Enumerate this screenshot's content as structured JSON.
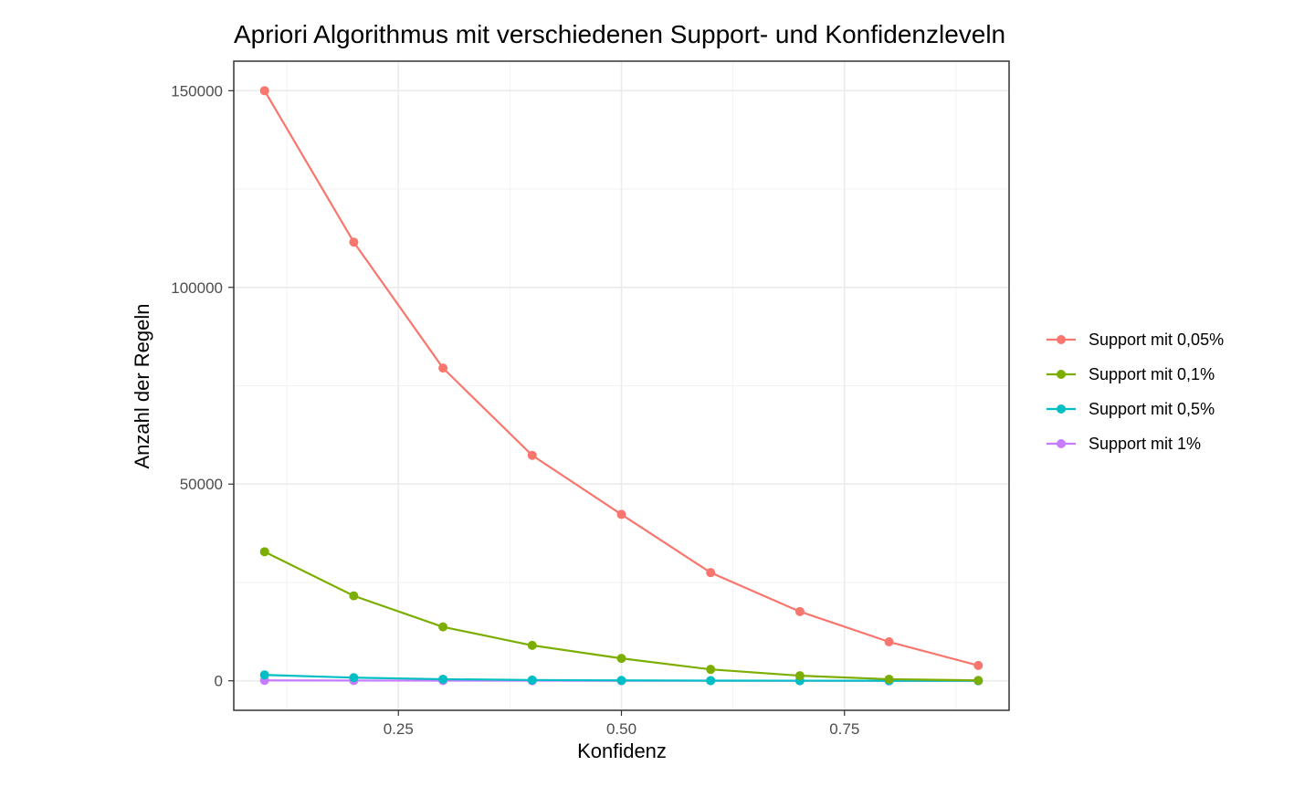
{
  "chart_data": {
    "type": "line",
    "title": "Apriori Algorithmus mit verschiedenen Support- und Konfidenzleveln",
    "xlabel": "Konfidenz",
    "ylabel": "Anzahl der Regeln",
    "x": [
      0.1,
      0.2,
      0.3,
      0.4,
      0.5,
      0.6,
      0.7,
      0.8,
      0.9
    ],
    "xlim": [
      0.0655,
      0.9345
    ],
    "ylim": [
      -7500,
      157500
    ],
    "x_ticks": [
      0.25,
      0.5,
      0.75
    ],
    "x_tick_labels": [
      "0.25",
      "0.50",
      "0.75"
    ],
    "y_ticks": [
      0,
      50000,
      100000,
      150000
    ],
    "y_tick_labels": [
      "0",
      "50000",
      "100000",
      "150000"
    ],
    "grid": true,
    "legend_position": "right",
    "series": [
      {
        "name": "Support mit 0,05%",
        "color": "#F8766D",
        "values": [
          150000,
          111500,
          79500,
          57300,
          42300,
          27500,
          17600,
          9900,
          3900
        ]
      },
      {
        "name": "Support mit 0,1%",
        "color": "#7CAE00",
        "values": [
          32800,
          21600,
          13700,
          9000,
          5700,
          2900,
          1300,
          400,
          100
        ]
      },
      {
        "name": "Support mit 0,5%",
        "color": "#00BFC4",
        "values": [
          1500,
          800,
          400,
          200,
          100,
          50,
          30,
          20,
          10
        ]
      },
      {
        "name": "Support mit 1%",
        "color": "#C77CFF",
        "values": [
          100,
          60,
          40,
          25,
          15,
          10,
          8,
          5,
          3
        ]
      }
    ]
  }
}
